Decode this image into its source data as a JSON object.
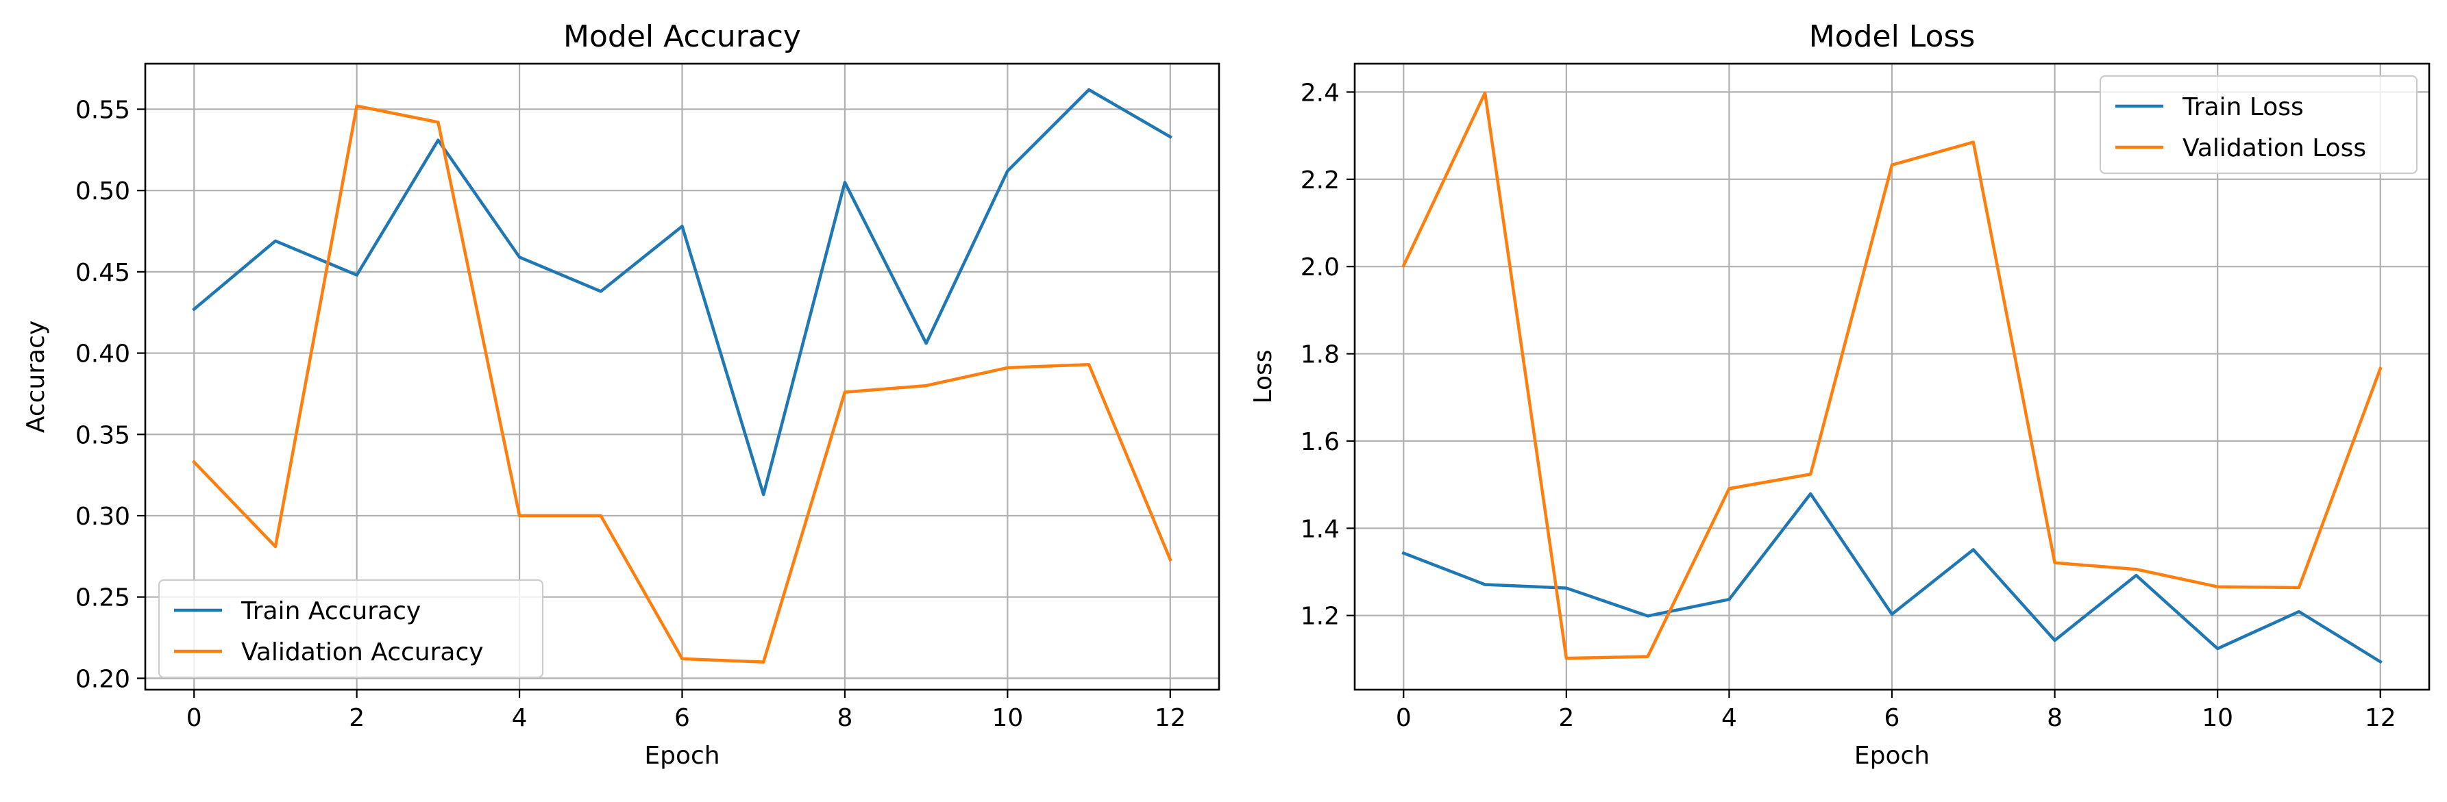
{
  "chart_data": [
    {
      "type": "line",
      "title": "Model Accuracy",
      "xlabel": "Epoch",
      "ylabel": "Accuracy",
      "x": [
        0,
        1,
        2,
        3,
        4,
        5,
        6,
        7,
        8,
        9,
        10,
        11,
        12
      ],
      "xlim": [
        -0.6,
        12.6
      ],
      "ylim": [
        0.193,
        0.578
      ],
      "xticks": [
        0,
        2,
        4,
        6,
        8,
        10,
        12
      ],
      "yticks": [
        0.2,
        0.25,
        0.3,
        0.35,
        0.4,
        0.45,
        0.5,
        0.55
      ],
      "ytick_labels": [
        "0.20",
        "0.25",
        "0.30",
        "0.35",
        "0.40",
        "0.45",
        "0.50",
        "0.55"
      ],
      "grid": true,
      "legend_position": "lower-left",
      "series": [
        {
          "name": "Train Accuracy",
          "color": "#1f77b4",
          "values": [
            0.427,
            0.469,
            0.448,
            0.531,
            0.459,
            0.438,
            0.478,
            0.313,
            0.505,
            0.406,
            0.512,
            0.562,
            0.533
          ]
        },
        {
          "name": "Validation Accuracy",
          "color": "#ff7f0e",
          "values": [
            0.333,
            0.281,
            0.552,
            0.542,
            0.3,
            0.3,
            0.212,
            0.21,
            0.376,
            0.38,
            0.391,
            0.393,
            0.273
          ]
        }
      ]
    },
    {
      "type": "line",
      "title": "Model Loss",
      "xlabel": "Epoch",
      "ylabel": "Loss",
      "x": [
        0,
        1,
        2,
        3,
        4,
        5,
        6,
        7,
        8,
        9,
        10,
        11,
        12
      ],
      "xlim": [
        -0.6,
        12.6
      ],
      "ylim": [
        1.03,
        2.465
      ],
      "xticks": [
        0,
        2,
        4,
        6,
        8,
        10,
        12
      ],
      "yticks": [
        1.2,
        1.4,
        1.6,
        1.8,
        2.0,
        2.2,
        2.4
      ],
      "ytick_labels": [
        "1.2",
        "1.4",
        "1.6",
        "1.8",
        "2.0",
        "2.2",
        "2.4"
      ],
      "grid": true,
      "legend_position": "upper-right",
      "series": [
        {
          "name": "Train Loss",
          "color": "#1f77b4",
          "values": [
            1.343,
            1.271,
            1.263,
            1.199,
            1.237,
            1.479,
            1.203,
            1.351,
            1.143,
            1.292,
            1.124,
            1.209,
            1.094
          ]
        },
        {
          "name": "Validation Loss",
          "color": "#ff7f0e",
          "values": [
            2.002,
            2.398,
            1.102,
            1.106,
            1.491,
            1.524,
            2.233,
            2.285,
            1.321,
            1.306,
            1.266,
            1.264,
            1.766
          ]
        }
      ]
    }
  ]
}
